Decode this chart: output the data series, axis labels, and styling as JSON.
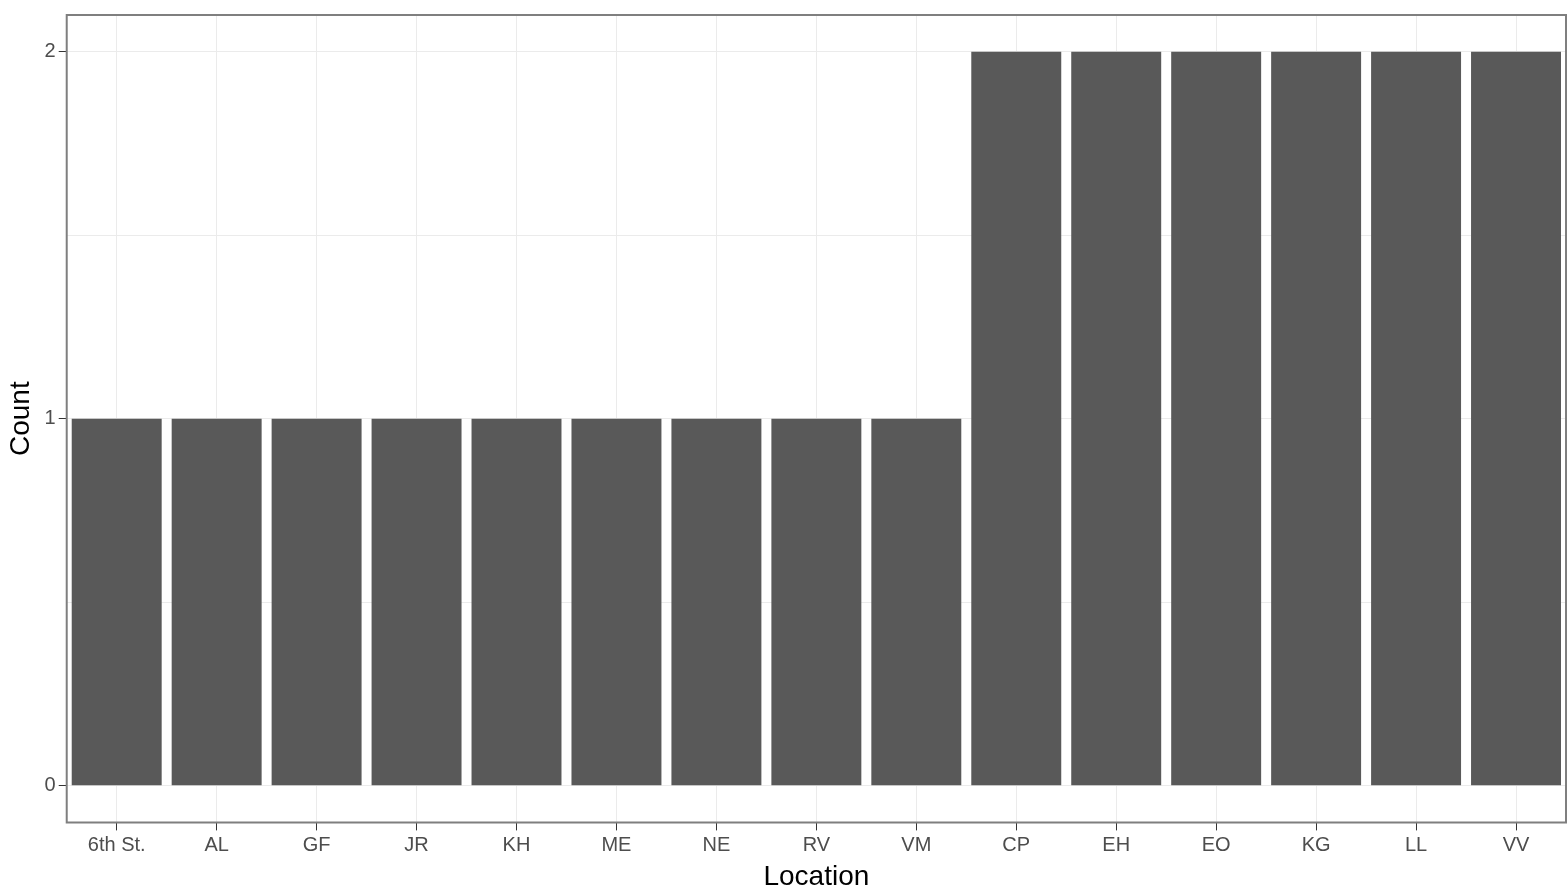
{
  "chart_data": {
    "type": "bar",
    "xlabel": "Location",
    "ylabel": "Count",
    "categories": [
      "6th St.",
      "AL",
      "GF",
      "JR",
      "KH",
      "ME",
      "NE",
      "RV",
      "VM",
      "CP",
      "EH",
      "EO",
      "KG",
      "LL",
      "VV"
    ],
    "values": [
      1,
      1,
      1,
      1,
      1,
      1,
      1,
      1,
      1,
      2,
      2,
      2,
      2,
      2,
      2
    ],
    "color": "#595959",
    "ylim": [
      -0.1,
      2.1
    ],
    "yticks": [
      0,
      {
        "value": 0.5,
        "label": null
      },
      1,
      {
        "value": 1.5,
        "label": null
      },
      2
    ],
    "grid": true,
    "legend": false
  }
}
